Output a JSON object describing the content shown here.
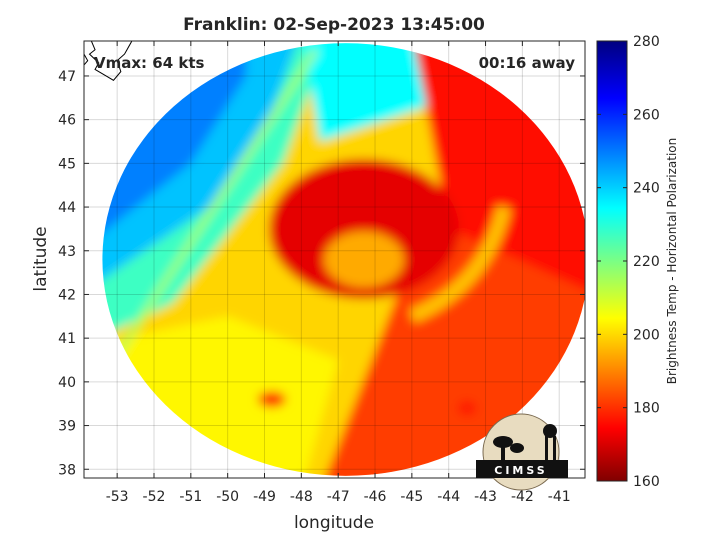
{
  "chart_data": {
    "type": "heatmap",
    "title": "Franklin: 02-Sep-2023 13:45:00",
    "xlabel": "longitude",
    "ylabel": "latitude",
    "xlim": [
      -53.9,
      -40.3
    ],
    "ylim": [
      37.8,
      47.8
    ],
    "xticks": [
      -53,
      -52,
      -51,
      -50,
      -49,
      -48,
      -47,
      -46,
      -45,
      -44,
      -43,
      -42,
      -41
    ],
    "yticks": [
      38,
      39,
      40,
      41,
      42,
      43,
      44,
      45,
      46,
      47
    ],
    "grid": true,
    "annotations": {
      "vmax": "Vmax: 64 kts",
      "offset": "00:16 away"
    },
    "colorbar": {
      "label": "Brightness Temp - Horizontal Polarization",
      "range": [
        160,
        280
      ],
      "ticks": [
        160,
        180,
        200,
        220,
        240,
        260,
        280
      ],
      "colormap": "jet"
    },
    "swath": {
      "center": [
        -46.8,
        42.8
      ],
      "radius_deg": [
        6.6,
        4.95
      ]
    },
    "features": {
      "warm_region": "northwest",
      "cold_core_center": [
        -46.3,
        43.5
      ],
      "frontal_band": "diagonal from -53,40.5 to -47.5,47.5"
    },
    "logo": {
      "text": "CIMSS"
    }
  }
}
